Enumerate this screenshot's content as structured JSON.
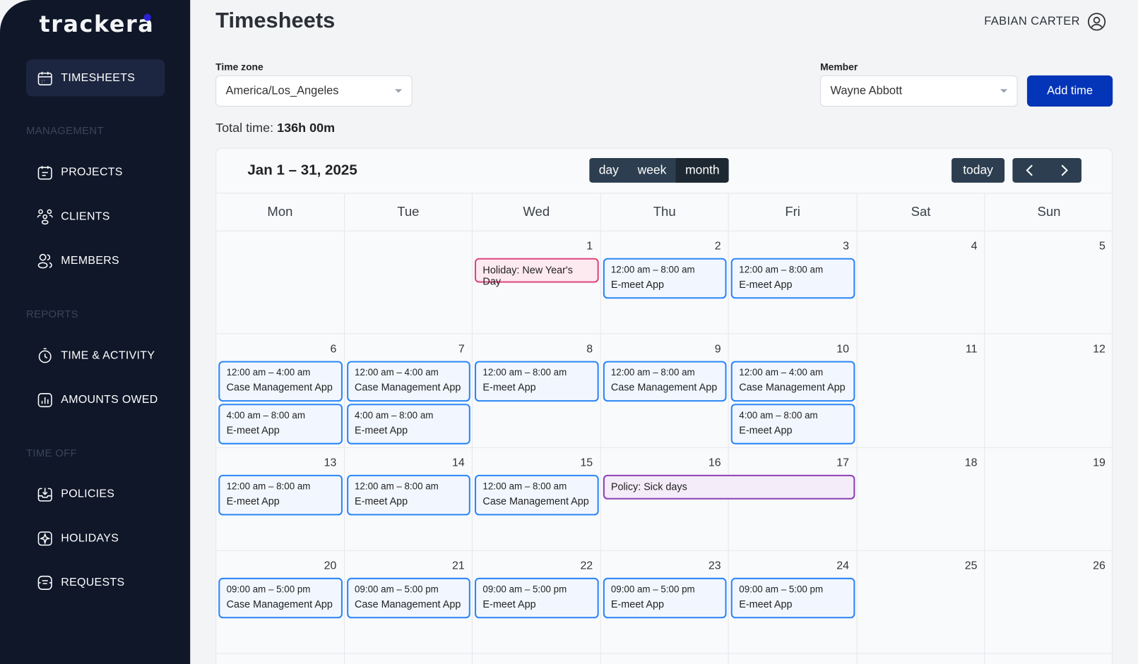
{
  "brand": {
    "name": "trackera",
    "accent": "#2b22d6"
  },
  "sidebar": {
    "items": [
      {
        "label": "TIMESHEETS",
        "icon": "calendar-icon",
        "active": true
      },
      {
        "label": "PROJECTS",
        "icon": "project-calendar-icon"
      },
      {
        "label": "CLIENTS",
        "icon": "clients-icon"
      },
      {
        "label": "MEMBERS",
        "icon": "members-icon"
      },
      {
        "label": "TIME & ACTIVITY",
        "icon": "stopwatch-icon"
      },
      {
        "label": "AMOUNTS OWED",
        "icon": "bar-chart-icon"
      },
      {
        "label": "POLICIES",
        "icon": "inbox-download-icon"
      },
      {
        "label": "HOLIDAYS",
        "icon": "plane-icon"
      },
      {
        "label": "REQUESTS",
        "icon": "request-icon"
      }
    ],
    "sections": [
      "MANAGEMENT",
      "REPORTS",
      "TIME OFF"
    ]
  },
  "header": {
    "title": "Timesheets",
    "user": "FABIAN CARTER"
  },
  "filters": {
    "timezone_label": "Time zone",
    "timezone_value": "America/Los_Angeles",
    "member_label": "Member",
    "member_value": "Wayne Abbott",
    "add_label": "Add time",
    "add_color": "#0434b7"
  },
  "total": {
    "label": "Total time:",
    "value": "136h 00m"
  },
  "calendar": {
    "range": "Jan 1 – 31, 2025",
    "views": [
      "day",
      "week",
      "month"
    ],
    "active_view": "month",
    "today_label": "today",
    "weekdays": [
      "Mon",
      "Tue",
      "Wed",
      "Thu",
      "Fri",
      "Sat",
      "Sun"
    ],
    "weeks": [
      {
        "days": [
          "",
          "",
          "1",
          "2",
          "3",
          "4",
          "5"
        ],
        "events": [
          {
            "type": "holiday",
            "col": 2,
            "span": 1,
            "slot": 0,
            "name": "Holiday: New Year's Day"
          },
          {
            "type": "work",
            "col": 3,
            "slot": 0,
            "time": "12:00 am – 8:00 am",
            "name": "E-meet App"
          },
          {
            "type": "work",
            "col": 4,
            "slot": 0,
            "time": "12:00 am – 8:00 am",
            "name": "E-meet App"
          }
        ]
      },
      {
        "days": [
          "6",
          "7",
          "8",
          "9",
          "10",
          "11",
          "12"
        ],
        "events": [
          {
            "type": "work",
            "col": 0,
            "slot": 0,
            "time": "12:00 am – 4:00 am",
            "name": "Case Management App"
          },
          {
            "type": "work",
            "col": 0,
            "slot": 1,
            "time": "4:00 am – 8:00 am",
            "name": "E-meet App"
          },
          {
            "type": "work",
            "col": 1,
            "slot": 0,
            "time": "12:00 am – 4:00 am",
            "name": "Case Management App"
          },
          {
            "type": "work",
            "col": 1,
            "slot": 1,
            "time": "4:00 am – 8:00 am",
            "name": "E-meet App"
          },
          {
            "type": "work",
            "col": 2,
            "slot": 0,
            "time": "12:00 am – 8:00 am",
            "name": "E-meet App"
          },
          {
            "type": "work",
            "col": 3,
            "slot": 0,
            "time": "12:00 am – 8:00 am",
            "name": "Case Management App"
          },
          {
            "type": "work",
            "col": 4,
            "slot": 0,
            "time": "12:00 am – 4:00 am",
            "name": "Case Management App"
          },
          {
            "type": "work",
            "col": 4,
            "slot": 1,
            "time": "4:00 am – 8:00 am",
            "name": "E-meet App"
          }
        ]
      },
      {
        "days": [
          "13",
          "14",
          "15",
          "16",
          "17",
          "18",
          "19"
        ],
        "events": [
          {
            "type": "work",
            "col": 0,
            "slot": 0,
            "time": "12:00 am – 8:00 am",
            "name": "E-meet App"
          },
          {
            "type": "work",
            "col": 1,
            "slot": 0,
            "time": "12:00 am – 8:00 am",
            "name": "E-meet App"
          },
          {
            "type": "work",
            "col": 2,
            "slot": 0,
            "time": "12:00 am – 8:00 am",
            "name": "Case Management App"
          },
          {
            "type": "policy",
            "col": 3,
            "span": 2,
            "slot": 0,
            "name": "Policy: Sick days"
          }
        ]
      },
      {
        "days": [
          "20",
          "21",
          "22",
          "23",
          "24",
          "25",
          "26"
        ],
        "events": [
          {
            "type": "work",
            "col": 0,
            "slot": 0,
            "time": "09:00 am – 5:00 pm",
            "name": "Case Management App"
          },
          {
            "type": "work",
            "col": 1,
            "slot": 0,
            "time": "09:00 am – 5:00 pm",
            "name": "Case Management App"
          },
          {
            "type": "work",
            "col": 2,
            "slot": 0,
            "time": "09:00 am – 5:00 pm",
            "name": "E-meet App"
          },
          {
            "type": "work",
            "col": 3,
            "slot": 0,
            "time": "09:00 am – 5:00 pm",
            "name": "E-meet App"
          },
          {
            "type": "work",
            "col": 4,
            "slot": 0,
            "time": "09:00 am – 5:00 pm",
            "name": "E-meet App"
          }
        ]
      },
      {
        "days": [
          "",
          "",
          "",
          "",
          "",
          "",
          ""
        ],
        "events": []
      }
    ]
  }
}
